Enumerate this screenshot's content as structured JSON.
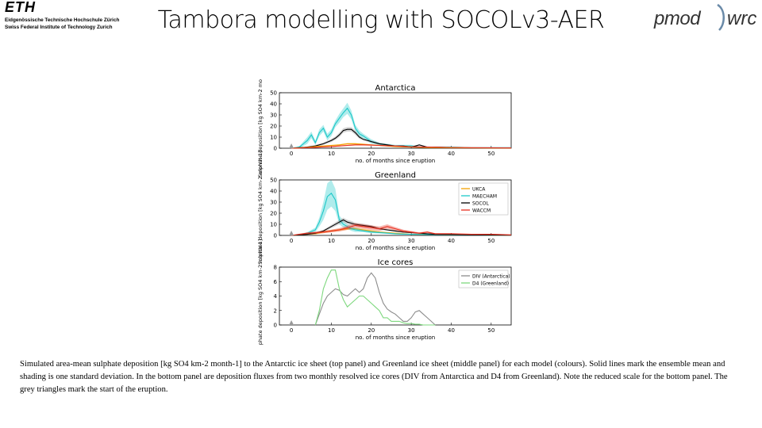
{
  "header": {
    "eth_logo": "ETH",
    "eth_line1": "Eidgenössische Technische Hochschule Zürich",
    "eth_line2": "Swiss Federal Institute of Technology Zurich",
    "title": "Tambora modelling with SOCOLv3-AER",
    "pmod_logo": "pmod",
    "wrc_logo": "wrc"
  },
  "caption": "Simulated area-mean sulphate deposition [kg SO4 km-2 month-1] to the Antarctic ice sheet (top panel) and Greenland ice sheet (middle panel) for each model (colours). Solid lines mark the ensemble mean and shading is one standard deviation. In the bottom panel are deposition fluxes from two monthly resolved ice cores (DIV from Antarctica and D4 from Greenland). Note the reduced scale for the bottom panel. The grey triangles mark the start of the eruption.",
  "colors": {
    "UKCA": "#f5a000",
    "MAECHAM": "#1cc8c8",
    "SOCOL": "#000000",
    "WACCM": "#e83020",
    "DIV": "#8c8c8c",
    "D4": "#7ed87e",
    "marker": "#999999"
  },
  "chart_data": [
    {
      "type": "line",
      "title": "Antarctica",
      "xlabel": "no. of months since eruption",
      "ylabel": "Sulphate deposition [kg SO4 km-2 month-1]",
      "xlim": [
        -3,
        55
      ],
      "ylim": [
        0,
        50
      ],
      "xticks": [
        0,
        10,
        20,
        30,
        40,
        50
      ],
      "yticks": [
        0,
        10,
        20,
        30,
        40,
        50
      ],
      "series": [
        {
          "name": "MAECHAM",
          "x": [
            0,
            2,
            4,
            5,
            6,
            7,
            8,
            9,
            10,
            11,
            12,
            13,
            14,
            15,
            16,
            17,
            18,
            20,
            22,
            24,
            26,
            28,
            30,
            32,
            34,
            36,
            40,
            45,
            50,
            55
          ],
          "values": [
            0,
            1,
            7,
            12,
            5,
            14,
            18,
            10,
            14,
            22,
            27,
            32,
            36,
            30,
            18,
            13,
            11,
            6,
            4,
            3,
            2,
            2,
            2,
            1,
            1,
            1,
            1,
            0.5,
            0.5,
            0.5
          ],
          "sd": [
            0,
            1,
            3,
            3,
            2,
            3,
            3,
            3,
            3,
            3,
            4,
            4,
            5,
            4,
            3,
            3,
            2,
            2,
            1,
            1,
            1,
            1,
            1,
            0.5,
            0.5,
            0.5,
            0.5,
            0.3,
            0.3,
            0.3
          ]
        },
        {
          "name": "SOCOL",
          "x": [
            0,
            2,
            4,
            6,
            8,
            10,
            11,
            12,
            13,
            14,
            15,
            16,
            17,
            18,
            20,
            22,
            24,
            26,
            28,
            30,
            32,
            34,
            36,
            40,
            45,
            50,
            55
          ],
          "values": [
            0,
            0.5,
            1,
            2,
            4,
            7,
            9,
            12,
            16,
            17,
            17,
            14,
            10,
            8,
            6,
            4,
            3,
            2,
            2,
            1,
            3,
            1,
            1,
            0.5,
            0.3,
            0.3,
            0.3
          ],
          "sd": [
            0,
            0.3,
            0.5,
            1,
            1,
            1.5,
            1.5,
            2,
            2,
            2,
            2,
            2,
            1.5,
            1,
            1,
            1,
            0.8,
            0.6,
            0.5,
            0.4,
            0.6,
            0.4,
            0.3,
            0.2,
            0.2,
            0.2,
            0.2
          ]
        },
        {
          "name": "UKCA",
          "x": [
            0,
            2,
            4,
            6,
            8,
            10,
            12,
            14,
            16,
            18,
            20,
            22,
            24,
            26,
            28,
            30,
            35,
            40,
            45,
            50,
            55
          ],
          "values": [
            0,
            0.3,
            0.8,
            1.5,
            2,
            2.5,
            3,
            4,
            4,
            3.5,
            3,
            2.5,
            2,
            1.5,
            1.2,
            1,
            0.6,
            0.4,
            0.3,
            0.2,
            0.2
          ],
          "sd": [
            0,
            0.2,
            0.3,
            0.4,
            0.5,
            0.5,
            0.6,
            0.7,
            0.7,
            0.6,
            0.5,
            0.5,
            0.4,
            0.3,
            0.3,
            0.3,
            0.2,
            0.2,
            0.1,
            0.1,
            0.1
          ]
        },
        {
          "name": "WACCM",
          "x": [
            0,
            2,
            4,
            6,
            8,
            10,
            12,
            14,
            16,
            18,
            20,
            22,
            24,
            26,
            28,
            30,
            35,
            40,
            45,
            50,
            55
          ],
          "values": [
            0,
            0.2,
            0.5,
            0.8,
            1.2,
            1.5,
            2,
            2.5,
            3,
            3,
            2.8,
            2.5,
            2.2,
            2,
            1.6,
            1.3,
            1,
            0.7,
            0.5,
            0.4,
            0.3
          ],
          "sd": [
            0,
            0.1,
            0.2,
            0.3,
            0.3,
            0.4,
            0.4,
            0.5,
            0.5,
            0.5,
            0.5,
            0.4,
            0.4,
            0.3,
            0.3,
            0.3,
            0.2,
            0.2,
            0.1,
            0.1,
            0.1
          ]
        }
      ]
    },
    {
      "type": "line",
      "title": "Greenland",
      "xlabel": "no. of months since eruption",
      "ylabel": "Sulphate deposition [kg SO4 km-2 month-1]",
      "xlim": [
        -3,
        55
      ],
      "ylim": [
        0,
        50
      ],
      "xticks": [
        0,
        10,
        20,
        30,
        40,
        50
      ],
      "yticks": [
        0,
        10,
        20,
        30,
        40,
        50
      ],
      "legend": [
        "UKCA",
        "MAECHAM",
        "SOCOL",
        "WACCM"
      ],
      "legend_position": "top-right",
      "series": [
        {
          "name": "UKCA",
          "x": [
            0,
            2,
            4,
            6,
            8,
            10,
            12,
            14,
            16,
            18,
            20,
            22,
            24,
            26,
            28,
            30,
            35,
            40,
            45,
            50,
            55
          ],
          "values": [
            0,
            0.5,
            1,
            1.5,
            3,
            4,
            5,
            6,
            6,
            5,
            4,
            3,
            2.5,
            2,
            1.5,
            1,
            1,
            0.5,
            0.5,
            0.3,
            0.3
          ],
          "sd": [
            0,
            0.3,
            0.5,
            0.5,
            1,
            1,
            1,
            1,
            1,
            1,
            0.8,
            0.7,
            0.6,
            0.5,
            0.4,
            0.3,
            0.3,
            0.2,
            0.2,
            0.1,
            0.1
          ]
        },
        {
          "name": "MAECHAM",
          "x": [
            0,
            2,
            4,
            6,
            7,
            8,
            9,
            10,
            11,
            12,
            13,
            14,
            15,
            16,
            18,
            20,
            22,
            24,
            26,
            28,
            30,
            35,
            40,
            45,
            50,
            55
          ],
          "values": [
            0,
            0.5,
            2,
            5,
            12,
            22,
            35,
            38,
            32,
            14,
            10,
            8,
            6,
            5,
            4,
            3,
            2.5,
            2,
            1.5,
            1.2,
            1,
            0.8,
            0.5,
            0.4,
            0.3,
            0.3
          ],
          "sd": [
            0,
            0.3,
            1,
            2,
            4,
            8,
            12,
            12,
            10,
            4,
            3,
            2,
            2,
            2,
            1,
            1,
            0.8,
            0.6,
            0.5,
            0.4,
            0.3,
            0.3,
            0.2,
            0.2,
            0.1,
            0.1
          ]
        },
        {
          "name": "SOCOL",
          "x": [
            0,
            2,
            4,
            6,
            8,
            10,
            12,
            13,
            14,
            15,
            16,
            18,
            20,
            22,
            24,
            26,
            28,
            30,
            32,
            34,
            36,
            40,
            45,
            50,
            55
          ],
          "values": [
            0,
            0.5,
            1,
            2,
            4,
            8,
            12,
            14,
            12,
            11,
            10,
            9,
            8,
            6,
            5,
            4,
            3,
            2.5,
            2,
            1.5,
            1,
            0.8,
            0.5,
            0.4,
            0.3
          ],
          "sd": [
            0,
            0.3,
            0.5,
            0.8,
            1,
            1.5,
            2,
            2,
            2,
            2,
            1.5,
            1.5,
            1.2,
            1,
            0.8,
            0.7,
            0.6,
            0.5,
            0.4,
            0.3,
            0.3,
            0.2,
            0.2,
            0.1,
            0.1
          ]
        },
        {
          "name": "WACCM",
          "x": [
            0,
            2,
            4,
            6,
            8,
            10,
            12,
            14,
            16,
            18,
            20,
            22,
            24,
            26,
            28,
            30,
            32,
            34,
            36,
            40,
            45,
            50,
            55
          ],
          "values": [
            0,
            1,
            2,
            2.5,
            3,
            4,
            5,
            7,
            9,
            8,
            7,
            6,
            8,
            6,
            4,
            3,
            2,
            3,
            1.5,
            1.5,
            1,
            1,
            0.5
          ],
          "sd": [
            0,
            0.5,
            0.8,
            1,
            1,
            1.2,
            1.5,
            2,
            2,
            2,
            2,
            2,
            2,
            1.5,
            1.2,
            1,
            0.8,
            0.8,
            0.6,
            0.5,
            0.4,
            0.4,
            0.3
          ]
        }
      ]
    },
    {
      "type": "line",
      "title": "Ice cores",
      "xlabel": "no. of months since eruption",
      "ylabel": "Sulphate deposition [kg SO4 km-2 month-1]",
      "xlim": [
        -3,
        55
      ],
      "ylim": [
        0,
        8
      ],
      "xticks": [
        0,
        10,
        20,
        30,
        40,
        50
      ],
      "yticks": [
        0,
        2,
        4,
        6,
        8
      ],
      "legend": [
        "DIV (Antarctica)",
        "D4 (Greenland)"
      ],
      "legend_position": "top-right",
      "series": [
        {
          "name": "DIV (Antarctica)",
          "x": [
            6,
            7,
            8,
            9,
            10,
            11,
            12,
            13,
            14,
            15,
            16,
            17,
            18,
            19,
            20,
            21,
            22,
            23,
            24,
            25,
            26,
            27,
            28,
            29,
            30,
            31,
            32,
            33,
            34,
            35,
            36
          ],
          "values": [
            0,
            1.5,
            3,
            4,
            4.5,
            5,
            4.8,
            4.2,
            4,
            4.5,
            5,
            4.5,
            5,
            6.5,
            7.2,
            6.5,
            4.5,
            3,
            2.2,
            1.8,
            1.5,
            1,
            0.5,
            0.5,
            1,
            1.8,
            2,
            1.5,
            1,
            0.5,
            0
          ]
        },
        {
          "name": "D4 (Greenland)",
          "x": [
            6,
            7,
            8,
            9,
            10,
            11,
            12,
            13,
            14,
            15,
            16,
            17,
            18,
            19,
            20,
            21,
            22,
            23,
            24,
            25,
            26,
            27,
            28,
            29,
            30,
            31,
            32,
            33,
            34,
            35,
            36
          ],
          "values": [
            0,
            2,
            5,
            6.5,
            7.6,
            7.6,
            5,
            3.5,
            2.5,
            3,
            3.5,
            4,
            4,
            3.5,
            3,
            2.5,
            2,
            1,
            1,
            0.5,
            0.5,
            0.5,
            0.3,
            0.2,
            0.2,
            0.1,
            0.1,
            0,
            0,
            0,
            0
          ]
        }
      ]
    }
  ]
}
